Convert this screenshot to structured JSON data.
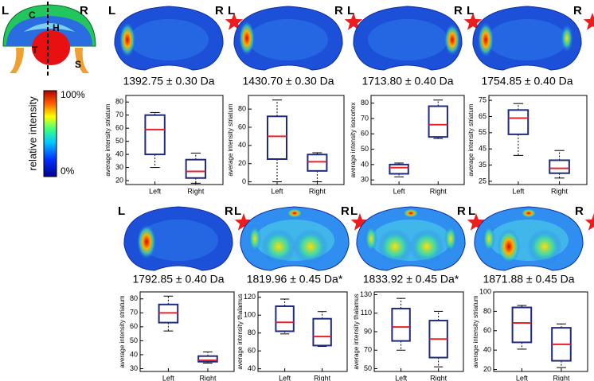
{
  "atlas": {
    "left_label": "L",
    "right_label": "R",
    "regions": [
      "C",
      "H",
      "T",
      "S"
    ]
  },
  "colorbar": {
    "label": "relative intensity",
    "max_label": "100%",
    "min_label": "0%"
  },
  "chart_data": [
    {
      "type": "box",
      "title": "1392.75 ± 0.30 Da",
      "side_labels": [
        "L",
        "R"
      ],
      "y_label": "average intensity striatum",
      "categories": [
        "Left",
        "Right"
      ],
      "boxes": [
        {
          "min": 30,
          "q1": 40,
          "median": 59,
          "q3": 70,
          "max": 72
        },
        {
          "min": 18,
          "q1": 22,
          "median": 27,
          "q3": 36,
          "max": 41
        }
      ],
      "ylim": [
        17,
        85
      ],
      "yticks": [
        20,
        30,
        40,
        50,
        60,
        70,
        80
      ],
      "box_color": "#1f2a80",
      "median_color": "#e8202a"
    },
    {
      "type": "box",
      "title": "1430.70 ± 0.30 Da",
      "side_labels": [
        "L",
        "R"
      ],
      "y_label": "average intensity striatum",
      "categories": [
        "Left",
        "Right"
      ],
      "boxes": [
        {
          "min": 0,
          "q1": 25,
          "median": 50,
          "q3": 72,
          "max": 90
        },
        {
          "min": 0,
          "q1": 12,
          "median": 22,
          "q3": 30,
          "max": 32
        }
      ],
      "ylim": [
        -3,
        95
      ],
      "yticks": [
        0,
        20,
        40,
        60,
        80
      ],
      "box_color": "#1f2a80",
      "median_color": "#e8202a"
    },
    {
      "type": "box",
      "title": "1713.80 ± 0.40 Da",
      "side_labels": [
        "L",
        "R"
      ],
      "y_label": "average intensity isocortex",
      "categories": [
        "Left",
        "Right"
      ],
      "boxes": [
        {
          "min": 32,
          "q1": 34,
          "median": 38,
          "q3": 40,
          "max": 41
        },
        {
          "min": 57,
          "q1": 58,
          "median": 66,
          "q3": 78,
          "max": 82
        }
      ],
      "ylim": [
        27,
        85
      ],
      "yticks": [
        30,
        40,
        50,
        60,
        70,
        80
      ],
      "box_color": "#1f2a80",
      "median_color": "#e8202a"
    },
    {
      "type": "box",
      "title": "1754.85 ± 0.40 Da",
      "side_labels": [
        "L",
        "R"
      ],
      "y_label": "average intensity striatum",
      "categories": [
        "Left",
        "Right"
      ],
      "boxes": [
        {
          "min": 41,
          "q1": 54,
          "median": 64,
          "q3": 69,
          "max": 73
        },
        {
          "min": 27,
          "q1": 30,
          "median": 33,
          "q3": 38,
          "max": 44
        }
      ],
      "ylim": [
        23,
        78
      ],
      "yticks": [
        25,
        35,
        45,
        55,
        65,
        75
      ],
      "box_color": "#1f2a80",
      "median_color": "#e8202a"
    },
    {
      "type": "box",
      "title": "1792.85 ± 0.40 Da",
      "side_labels": [
        "L",
        "R"
      ],
      "y_label": "average intensity striatum",
      "categories": [
        "Left",
        "Right"
      ],
      "boxes": [
        {
          "min": 57,
          "q1": 63,
          "median": 70,
          "q3": 76,
          "max": 82
        },
        {
          "min": 34,
          "q1": 35,
          "median": 36,
          "q3": 39,
          "max": 42
        }
      ],
      "ylim": [
        28,
        85
      ],
      "yticks": [
        30,
        40,
        50,
        60,
        70,
        80
      ],
      "box_color": "#1f2a80",
      "median_color": "#e8202a"
    },
    {
      "type": "box",
      "title": "1819.96 ± 0.45 Da*",
      "side_labels": [
        "L",
        "R"
      ],
      "y_label": "average intensity thalamus",
      "categories": [
        "Left",
        "Right"
      ],
      "boxes": [
        {
          "min": 79,
          "q1": 82,
          "median": 92,
          "q3": 110,
          "max": 118
        },
        {
          "min": 65,
          "q1": 66,
          "median": 76,
          "q3": 96,
          "max": 104
        }
      ],
      "ylim": [
        37,
        126
      ],
      "yticks": [
        40,
        60,
        80,
        100,
        120
      ],
      "box_color": "#1f2a80",
      "median_color": "#e8202a"
    },
    {
      "type": "box",
      "title": "1833.92 ± 0.45 Da*",
      "side_labels": [
        "L",
        "R"
      ],
      "y_label": "average intensity thalamus",
      "categories": [
        "Left",
        "Right"
      ],
      "boxes": [
        {
          "min": 70,
          "q1": 80,
          "median": 95,
          "q3": 115,
          "max": 126
        },
        {
          "min": 52,
          "q1": 62,
          "median": 82,
          "q3": 102,
          "max": 112
        }
      ],
      "ylim": [
        47,
        133
      ],
      "yticks": [
        50,
        70,
        90,
        110,
        130
      ],
      "box_color": "#1f2a80",
      "median_color": "#e8202a"
    },
    {
      "type": "box",
      "title": "1871.88 ± 0.45 Da",
      "side_labels": [
        "L",
        "R"
      ],
      "y_label": "average intensity striatum",
      "categories": [
        "Left",
        "Right"
      ],
      "boxes": [
        {
          "min": 41,
          "q1": 48,
          "median": 68,
          "q3": 84,
          "max": 86
        },
        {
          "min": 22,
          "q1": 29,
          "median": 46,
          "q3": 63,
          "max": 67
        }
      ],
      "ylim": [
        18,
        100
      ],
      "yticks": [
        20,
        40,
        60,
        80,
        100
      ],
      "box_color": "#1f2a80",
      "median_color": "#e8202a"
    }
  ]
}
